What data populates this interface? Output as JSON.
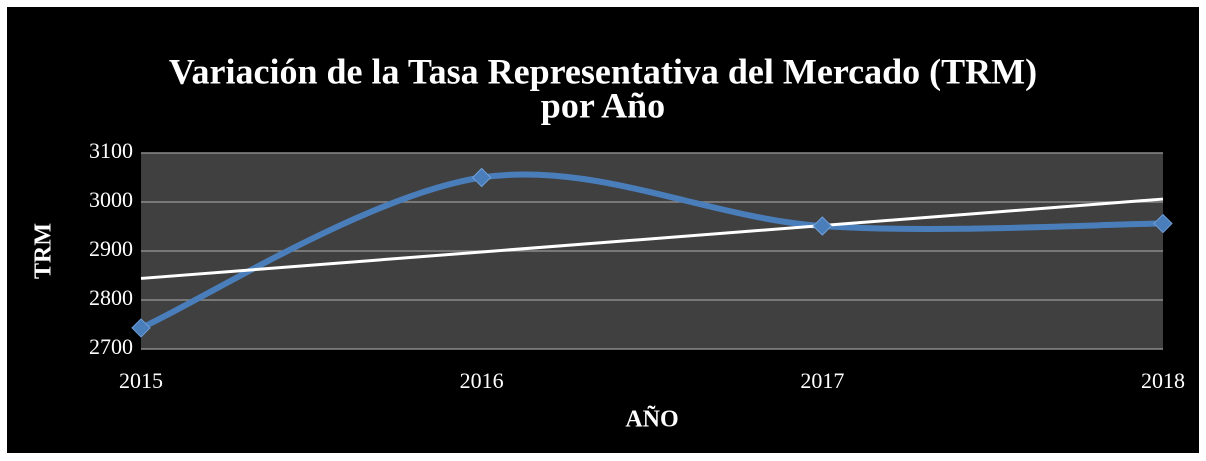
{
  "chart_data": {
    "type": "line",
    "title": [
      "Variación de la Tasa Representativa del Mercado (TRM)",
      "por Año"
    ],
    "x_label": "AÑO",
    "y_label": "TRM",
    "categories": [
      "2015",
      "2016",
      "2017",
      "2018"
    ],
    "series": [
      {
        "name": "TRM",
        "color": "#4a7ebb",
        "values": [
          2743,
          3050,
          2951,
          2956
        ]
      }
    ],
    "smooth": true,
    "marker": "diamond",
    "trendline": {
      "type": "linear",
      "color": "#ffffff"
    },
    "ylim": [
      2700,
      3100
    ],
    "yticks": [
      2700,
      2800,
      2900,
      3000,
      3100
    ],
    "grid": true
  }
}
